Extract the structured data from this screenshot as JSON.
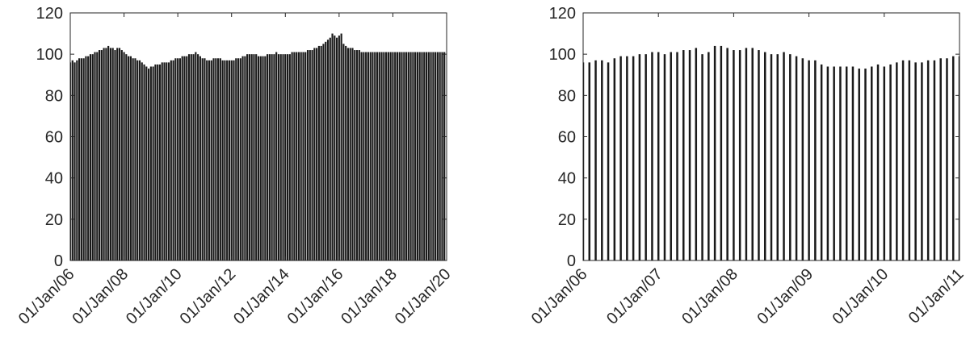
{
  "chart_data": [
    {
      "type": "bar",
      "title": "",
      "xlabel": "",
      "ylabel": "",
      "ylim": [
        0,
        120
      ],
      "yticks": [
        "0",
        "20",
        "40",
        "60",
        "80",
        "100",
        "120"
      ],
      "xlim": [
        "2006-01-01",
        "2020-01-01"
      ],
      "xticks": [
        {
          "date": "2006-01-01",
          "label": "01/Jan/06"
        },
        {
          "date": "2008-01-01",
          "label": "01/Jan/08"
        },
        {
          "date": "2010-01-01",
          "label": "01/Jan/10"
        },
        {
          "date": "2012-01-01",
          "label": "01/Jan/12"
        },
        {
          "date": "2014-01-01",
          "label": "01/Jan/14"
        },
        {
          "date": "2016-01-01",
          "label": "01/Jan/16"
        },
        {
          "date": "2018-01-01",
          "label": "01/Jan/18"
        },
        {
          "date": "2020-01-01",
          "label": "01/Jan/20"
        }
      ],
      "bar_color": "#1a1a1a",
      "series": [
        {
          "frequency": "monthly",
          "start": "2006-01-01",
          "values": [
            96,
            97,
            96,
            97,
            98,
            98,
            98,
            99,
            99,
            100,
            100,
            101,
            101,
            102,
            102,
            103,
            103,
            104,
            103,
            103,
            102,
            103,
            103,
            102,
            101,
            100,
            99,
            99,
            98,
            98,
            97,
            97,
            96,
            95,
            94,
            93,
            94,
            94,
            95,
            95,
            95,
            96,
            96,
            96,
            96,
            97,
            97,
            98,
            98,
            98,
            99,
            99,
            99,
            100,
            100,
            100,
            101,
            100,
            99,
            98,
            98,
            97,
            97,
            97,
            98,
            98,
            98,
            98,
            97,
            97,
            97,
            97,
            97,
            97,
            98,
            98,
            98,
            99,
            99,
            100,
            100,
            100,
            100,
            100,
            99,
            99,
            99,
            99,
            100,
            100,
            100,
            100,
            101,
            100,
            100,
            100,
            100,
            100,
            100,
            101,
            101,
            101,
            101,
            101,
            101,
            101,
            102,
            102,
            102,
            103,
            103,
            104,
            104,
            105,
            106,
            107,
            108,
            110,
            109,
            108,
            109,
            110,
            105,
            104,
            103,
            103,
            103,
            102,
            102,
            102,
            101,
            101,
            101,
            101,
            101,
            101,
            101,
            101,
            101,
            101,
            101,
            101,
            101,
            101,
            101,
            101,
            101,
            101,
            101,
            101,
            101,
            101,
            101,
            101,
            101,
            101,
            101,
            101,
            101,
            101,
            101,
            101,
            101,
            101,
            101,
            101,
            101,
            101
          ]
        }
      ]
    },
    {
      "type": "bar",
      "title": "",
      "xlabel": "",
      "ylabel": "",
      "ylim": [
        0,
        120
      ],
      "yticks": [
        "0",
        "20",
        "40",
        "60",
        "80",
        "100",
        "120"
      ],
      "xlim": [
        "2006-01-01",
        "2011-01-01"
      ],
      "xticks": [
        {
          "date": "2006-01-01",
          "label": "01/Jan/06"
        },
        {
          "date": "2007-01-01",
          "label": "01/Jan/07"
        },
        {
          "date": "2008-01-01",
          "label": "01/Jan/08"
        },
        {
          "date": "2009-01-01",
          "label": "01/Jan/09"
        },
        {
          "date": "2010-01-01",
          "label": "01/Jan/10"
        },
        {
          "date": "2011-01-01",
          "label": "01/Jan/11"
        }
      ],
      "bar_color": "#1a1a1a",
      "series": [
        {
          "frequency": "monthly",
          "start": "2006-01-01",
          "values": [
            96,
            96,
            97,
            97,
            96,
            98,
            99,
            99,
            99,
            100,
            100,
            101,
            101,
            100,
            101,
            101,
            102,
            102,
            103,
            100,
            101,
            104,
            104,
            103,
            102,
            102,
            103,
            103,
            102,
            101,
            100,
            100,
            101,
            100,
            99,
            98,
            97,
            97,
            95,
            94,
            94,
            94,
            94,
            94,
            93,
            93,
            94,
            95,
            94,
            95,
            96,
            97,
            97,
            96,
            96,
            97,
            97,
            98,
            98,
            99,
            99
          ]
        }
      ]
    }
  ]
}
